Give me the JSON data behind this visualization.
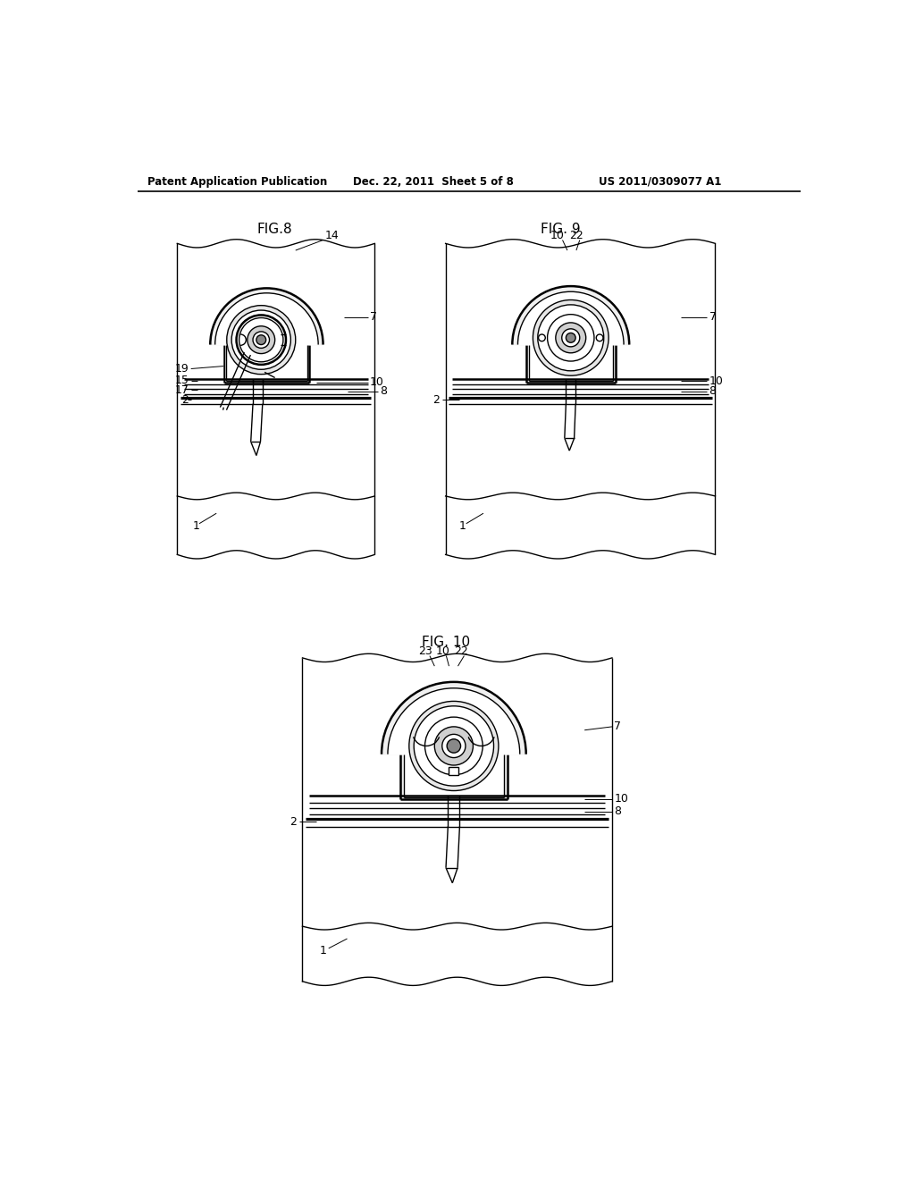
{
  "bg_color": "#ffffff",
  "header_left": "Patent Application Publication",
  "header_mid": "Dec. 22, 2011  Sheet 5 of 8",
  "header_right": "US 2011/0309077 A1",
  "fig8_title": "FIG.8",
  "fig9_title": "FIG. 9",
  "fig10_title": "FIG. 10",
  "lc": "#000000",
  "lw": 1.0,
  "tlw": 1.8
}
